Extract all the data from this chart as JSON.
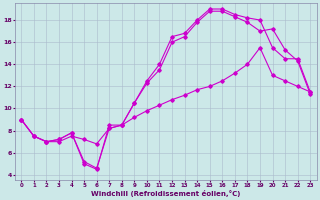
{
  "bg_color": "#cce8e8",
  "line_color": "#cc00cc",
  "grid_color": "#aabbcc",
  "xlabel": "Windchill (Refroidissement éolien,°C)",
  "xlim": [
    -0.5,
    23.5
  ],
  "ylim": [
    3.5,
    19.5
  ],
  "yticks": [
    4,
    6,
    8,
    10,
    12,
    14,
    16,
    18
  ],
  "xticks": [
    0,
    1,
    2,
    3,
    4,
    5,
    6,
    7,
    8,
    9,
    10,
    11,
    12,
    13,
    14,
    15,
    16,
    17,
    18,
    19,
    20,
    21,
    22,
    23
  ],
  "line1_x": [
    0,
    1,
    2,
    3,
    4,
    5,
    6,
    7,
    8,
    9,
    10,
    11,
    12,
    13,
    14,
    15,
    16,
    17,
    18,
    19,
    20,
    21,
    22,
    23
  ],
  "line1_y": [
    9,
    7.5,
    7.0,
    7.2,
    7.8,
    5.0,
    4.5,
    8.5,
    8.5,
    10.5,
    12.5,
    14.0,
    16.5,
    16.8,
    18.0,
    19.0,
    19.0,
    18.5,
    18.2,
    18.0,
    15.5,
    14.5,
    14.5,
    11.5
  ],
  "line2_x": [
    0,
    1,
    2,
    3,
    4,
    5,
    6,
    7,
    8,
    9,
    10,
    11,
    12,
    13,
    14,
    15,
    16,
    17,
    18,
    19,
    20,
    21,
    22,
    23
  ],
  "line2_y": [
    9,
    7.5,
    7.0,
    7.2,
    7.8,
    5.2,
    4.6,
    8.2,
    8.5,
    10.5,
    12.3,
    13.5,
    16.0,
    16.5,
    17.8,
    18.8,
    18.8,
    18.3,
    17.8,
    17.0,
    17.2,
    15.3,
    14.3,
    11.3
  ],
  "line3_x": [
    0,
    1,
    2,
    3,
    4,
    5,
    6,
    7,
    8,
    9,
    10,
    11,
    12,
    13,
    14,
    15,
    16,
    17,
    18,
    19,
    20,
    21,
    22,
    23
  ],
  "line3_y": [
    9,
    7.5,
    7.0,
    7.0,
    7.5,
    7.2,
    6.8,
    8.2,
    8.5,
    9.2,
    9.8,
    10.3,
    10.8,
    11.2,
    11.7,
    12.0,
    12.5,
    13.2,
    14.0,
    15.5,
    13.0,
    12.5,
    12.0,
    11.5
  ]
}
